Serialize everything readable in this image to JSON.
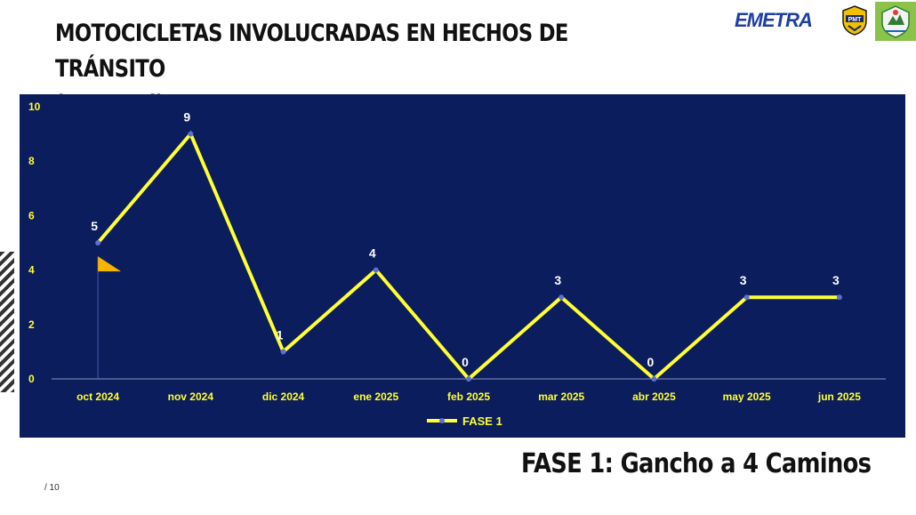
{
  "slide": {
    "title_line1": "MOTOCICLETAS INVOLUCRADAS EN HECHOS DE TRÁNSITO",
    "title_line2": "(mensual)",
    "subtitle": "FASE 1: Gancho a 4 Caminos",
    "page_number": "/ 10"
  },
  "logos": {
    "emetra": "EMETRA",
    "pmt": "PMT"
  },
  "colors": {
    "panel_background": "#0b1d5c",
    "series_line": "#ffff33",
    "marker": "#5b6fd6",
    "axis_text": "#ffff33",
    "data_label_text": "#ffffff",
    "flag": "#f5b400"
  },
  "chart_data": {
    "type": "line",
    "categories": [
      "oct 2024",
      "nov 2024",
      "dic 2024",
      "ene 2025",
      "feb 2025",
      "mar 2025",
      "abr 2025",
      "may 2025",
      "jun 2025"
    ],
    "series": [
      {
        "name": "FASE 1",
        "values": [
          5,
          9,
          1,
          4,
          0,
          3,
          0,
          3,
          3
        ]
      }
    ],
    "ylim": [
      0,
      10
    ],
    "yticks": [
      0,
      2,
      4,
      6,
      8,
      10
    ],
    "data_labels": true,
    "grid": false,
    "legend_position": "bottom"
  }
}
